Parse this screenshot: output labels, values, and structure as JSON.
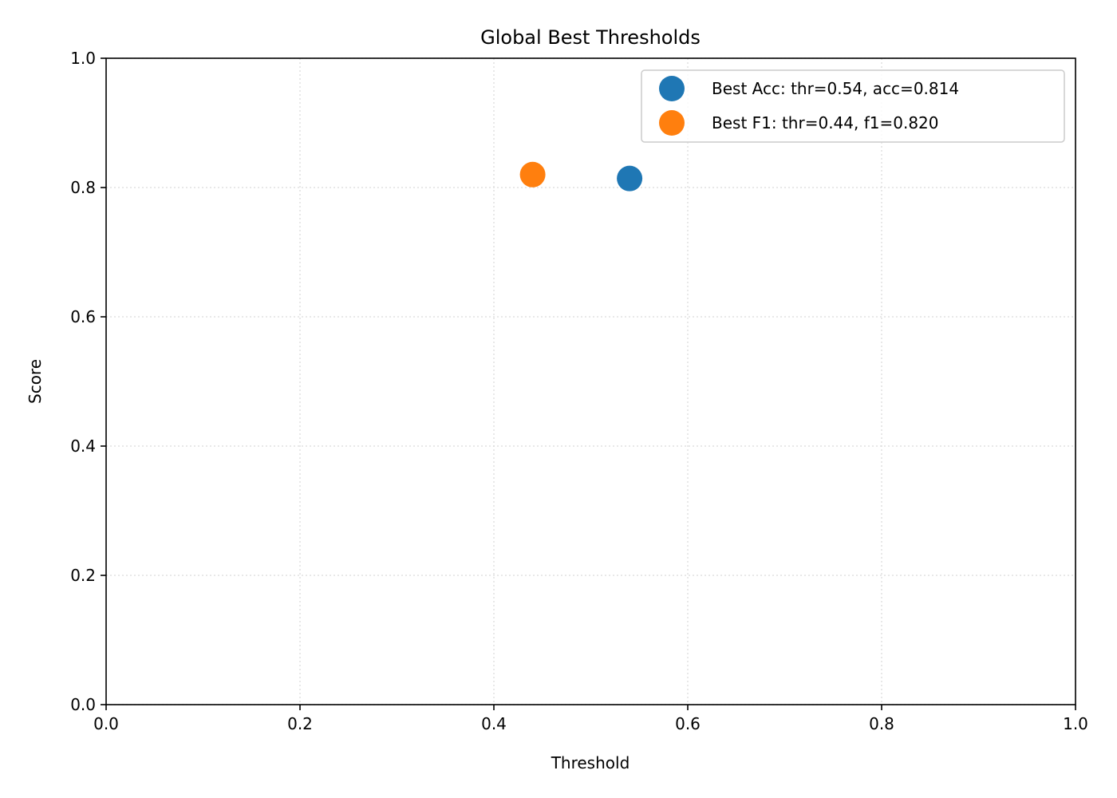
{
  "chart_data": {
    "type": "scatter",
    "title": "Global Best Thresholds",
    "xlabel": "Threshold",
    "ylabel": "Score",
    "xlim": [
      0,
      1
    ],
    "ylim": [
      0,
      1
    ],
    "x_ticks": [
      0.0,
      0.2,
      0.4,
      0.6,
      0.8,
      1.0
    ],
    "y_ticks": [
      0.0,
      0.2,
      0.4,
      0.6,
      0.8,
      1.0
    ],
    "x_tick_labels": [
      "0.0",
      "0.2",
      "0.4",
      "0.6",
      "0.8",
      "1.0"
    ],
    "y_tick_labels": [
      "0.0",
      "0.2",
      "0.4",
      "0.6",
      "0.8",
      "1.0"
    ],
    "grid": true,
    "grid_style": "dotted",
    "legend_position": "top-right",
    "series": [
      {
        "name": "Best Acc: thr=0.54, acc=0.814",
        "color": "#1f77b4",
        "points": [
          {
            "x": 0.54,
            "y": 0.814
          }
        ]
      },
      {
        "name": "Best F1: thr=0.44, f1=0.820",
        "color": "#ff7f0e",
        "points": [
          {
            "x": 0.44,
            "y": 0.82
          }
        ]
      }
    ]
  }
}
